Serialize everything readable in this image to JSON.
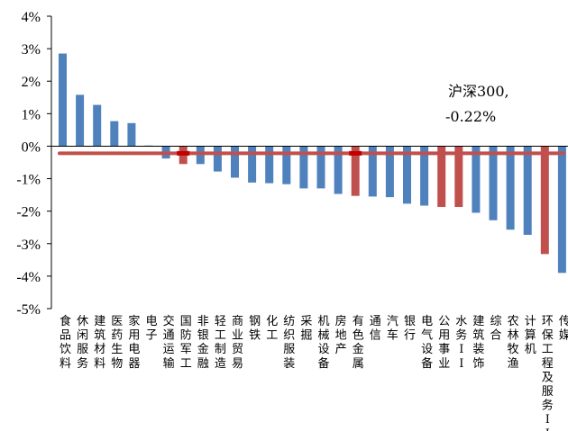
{
  "chart_data": {
    "type": "bar",
    "categories": [
      "食品饮料",
      "休闲服务",
      "建筑材料",
      "医药生物",
      "家用电器",
      "电子",
      "交通运输",
      "国防军工",
      "非银金融",
      "轻工制造",
      "商业贸易",
      "钢铁",
      "化工",
      "纺织服装",
      "采掘",
      "机械设备",
      "房地产",
      "有色金属",
      "通信",
      "汽车",
      "银行",
      "电气设备",
      "公用事业",
      "水务II",
      "建筑装饰",
      "综合",
      "农林牧渔",
      "计算机",
      "环保工程及服务II",
      "传媒"
    ],
    "values": [
      2.85,
      1.58,
      1.27,
      0.77,
      0.71,
      0.02,
      -0.38,
      -0.55,
      -0.55,
      -0.78,
      -0.97,
      -1.12,
      -1.14,
      -1.17,
      -1.3,
      -1.3,
      -1.47,
      -1.53,
      -1.55,
      -1.57,
      -1.77,
      -1.83,
      -1.87,
      -1.87,
      -2.05,
      -2.28,
      -2.57,
      -2.73,
      -3.32,
      -3.9
    ],
    "highlight": [
      "国防军工",
      "有色金属",
      "公用事业",
      "水务II",
      "环保工程及服务II"
    ],
    "colors": {
      "default": "#4f81bd",
      "highlight": "#c0504d",
      "reference": "#c0504d",
      "reference_marker": "#c00000"
    },
    "reference_line": {
      "value": -0.22,
      "label_line1": "沪深300,",
      "label_line2": "-0.22%"
    },
    "ylim": [
      -5,
      4
    ],
    "yticks": [
      4,
      3,
      2,
      1,
      0,
      -1,
      -2,
      -3,
      -4,
      -5
    ],
    "ytick_labels": [
      "4%",
      "3%",
      "2%",
      "1%",
      "0%",
      "-1%",
      "-2%",
      "-3%",
      "-4%",
      "-5%"
    ],
    "title": "",
    "xlabel": "",
    "ylabel": ""
  }
}
